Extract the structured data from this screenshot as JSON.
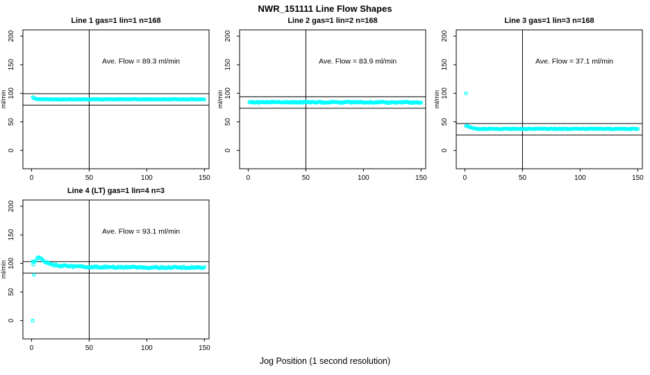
{
  "page": {
    "title": "NWR_151111  Line Flow Shapes",
    "xlabel": "Jog Position (1 second resolution)",
    "background": "#FFFFFF",
    "point_color": "#00FFFF",
    "axis_color": "#000000"
  },
  "chart_data": [
    {
      "type": "scatter",
      "title": "Line 1 gas=1 lin=1 n=168",
      "annotation": "Ave. Flow =  89.3  ml/min",
      "ave_flow_ml_min": 89.3,
      "ylabel": "ml/min",
      "xticks": [
        0,
        50,
        100,
        150
      ],
      "yticks": [
        0,
        50,
        100,
        150,
        200
      ],
      "xlim": [
        0,
        150
      ],
      "ylim": [
        0,
        200
      ],
      "grid": false,
      "vline_x": 50,
      "hlines": [
        99.3,
        79.3
      ],
      "series": {
        "n": 150,
        "noise": 0.5,
        "anchors": [
          [
            1,
            93
          ],
          [
            2,
            91.5
          ],
          [
            4,
            90
          ],
          [
            10,
            89.5
          ],
          [
            150,
            89.5
          ]
        ],
        "extra_points": []
      }
    },
    {
      "type": "scatter",
      "title": "Line 2 gas=1 lin=2 n=168",
      "annotation": "Ave. Flow =  83.9  ml/min",
      "ave_flow_ml_min": 83.9,
      "ylabel": "ml/min",
      "xticks": [
        0,
        50,
        100,
        150
      ],
      "yticks": [
        0,
        50,
        100,
        150,
        200
      ],
      "xlim": [
        0,
        150
      ],
      "ylim": [
        0,
        200
      ],
      "grid": false,
      "vline_x": 50,
      "hlines": [
        93.9,
        73.9
      ],
      "series": {
        "n": 150,
        "noise": 1.1,
        "anchors": [
          [
            1,
            84.5
          ],
          [
            150,
            84
          ]
        ],
        "extra_points": []
      }
    },
    {
      "type": "scatter",
      "title": "Line 3 gas=1 lin=3 n=168",
      "annotation": "Ave. Flow =  37.1  ml/min",
      "ave_flow_ml_min": 37.1,
      "ylabel": "ml/min",
      "xticks": [
        0,
        50,
        100,
        150
      ],
      "yticks": [
        0,
        50,
        100,
        150,
        200
      ],
      "xlim": [
        0,
        150
      ],
      "ylim": [
        0,
        200
      ],
      "grid": false,
      "vline_x": 50,
      "hlines": [
        47.1,
        27.1
      ],
      "series": {
        "n": 150,
        "noise": 0.6,
        "anchors": [
          [
            2,
            43
          ],
          [
            4,
            41
          ],
          [
            8,
            38.5
          ],
          [
            12,
            37.8
          ],
          [
            150,
            37.8
          ]
        ],
        "extra_points": [
          [
            1,
            100
          ]
        ]
      }
    },
    {
      "type": "scatter",
      "title": "Line 4 (LT) gas=1 lin=4 n=3",
      "annotation": "Ave. Flow =  93.1  ml/min",
      "ave_flow_ml_min": 93.1,
      "ylabel": "ml/min",
      "xticks": [
        0,
        50,
        100,
        150
      ],
      "yticks": [
        0,
        50,
        100,
        150,
        200
      ],
      "xlim": [
        0,
        150
      ],
      "ylim": [
        0,
        200
      ],
      "grid": false,
      "vline_x": 50,
      "hlines": [
        103.1,
        83.1
      ],
      "series": {
        "n": 150,
        "noise": 1.4,
        "anchors": [
          [
            3,
            104
          ],
          [
            5,
            110
          ],
          [
            7,
            110
          ],
          [
            10,
            106
          ],
          [
            14,
            101
          ],
          [
            18,
            98
          ],
          [
            25,
            96
          ],
          [
            35,
            94.5
          ],
          [
            60,
            93.5
          ],
          [
            100,
            93
          ],
          [
            150,
            93
          ]
        ],
        "extra_points": [
          [
            1,
            0
          ],
          [
            1.5,
            98
          ],
          [
            2,
            80
          ]
        ]
      }
    }
  ]
}
